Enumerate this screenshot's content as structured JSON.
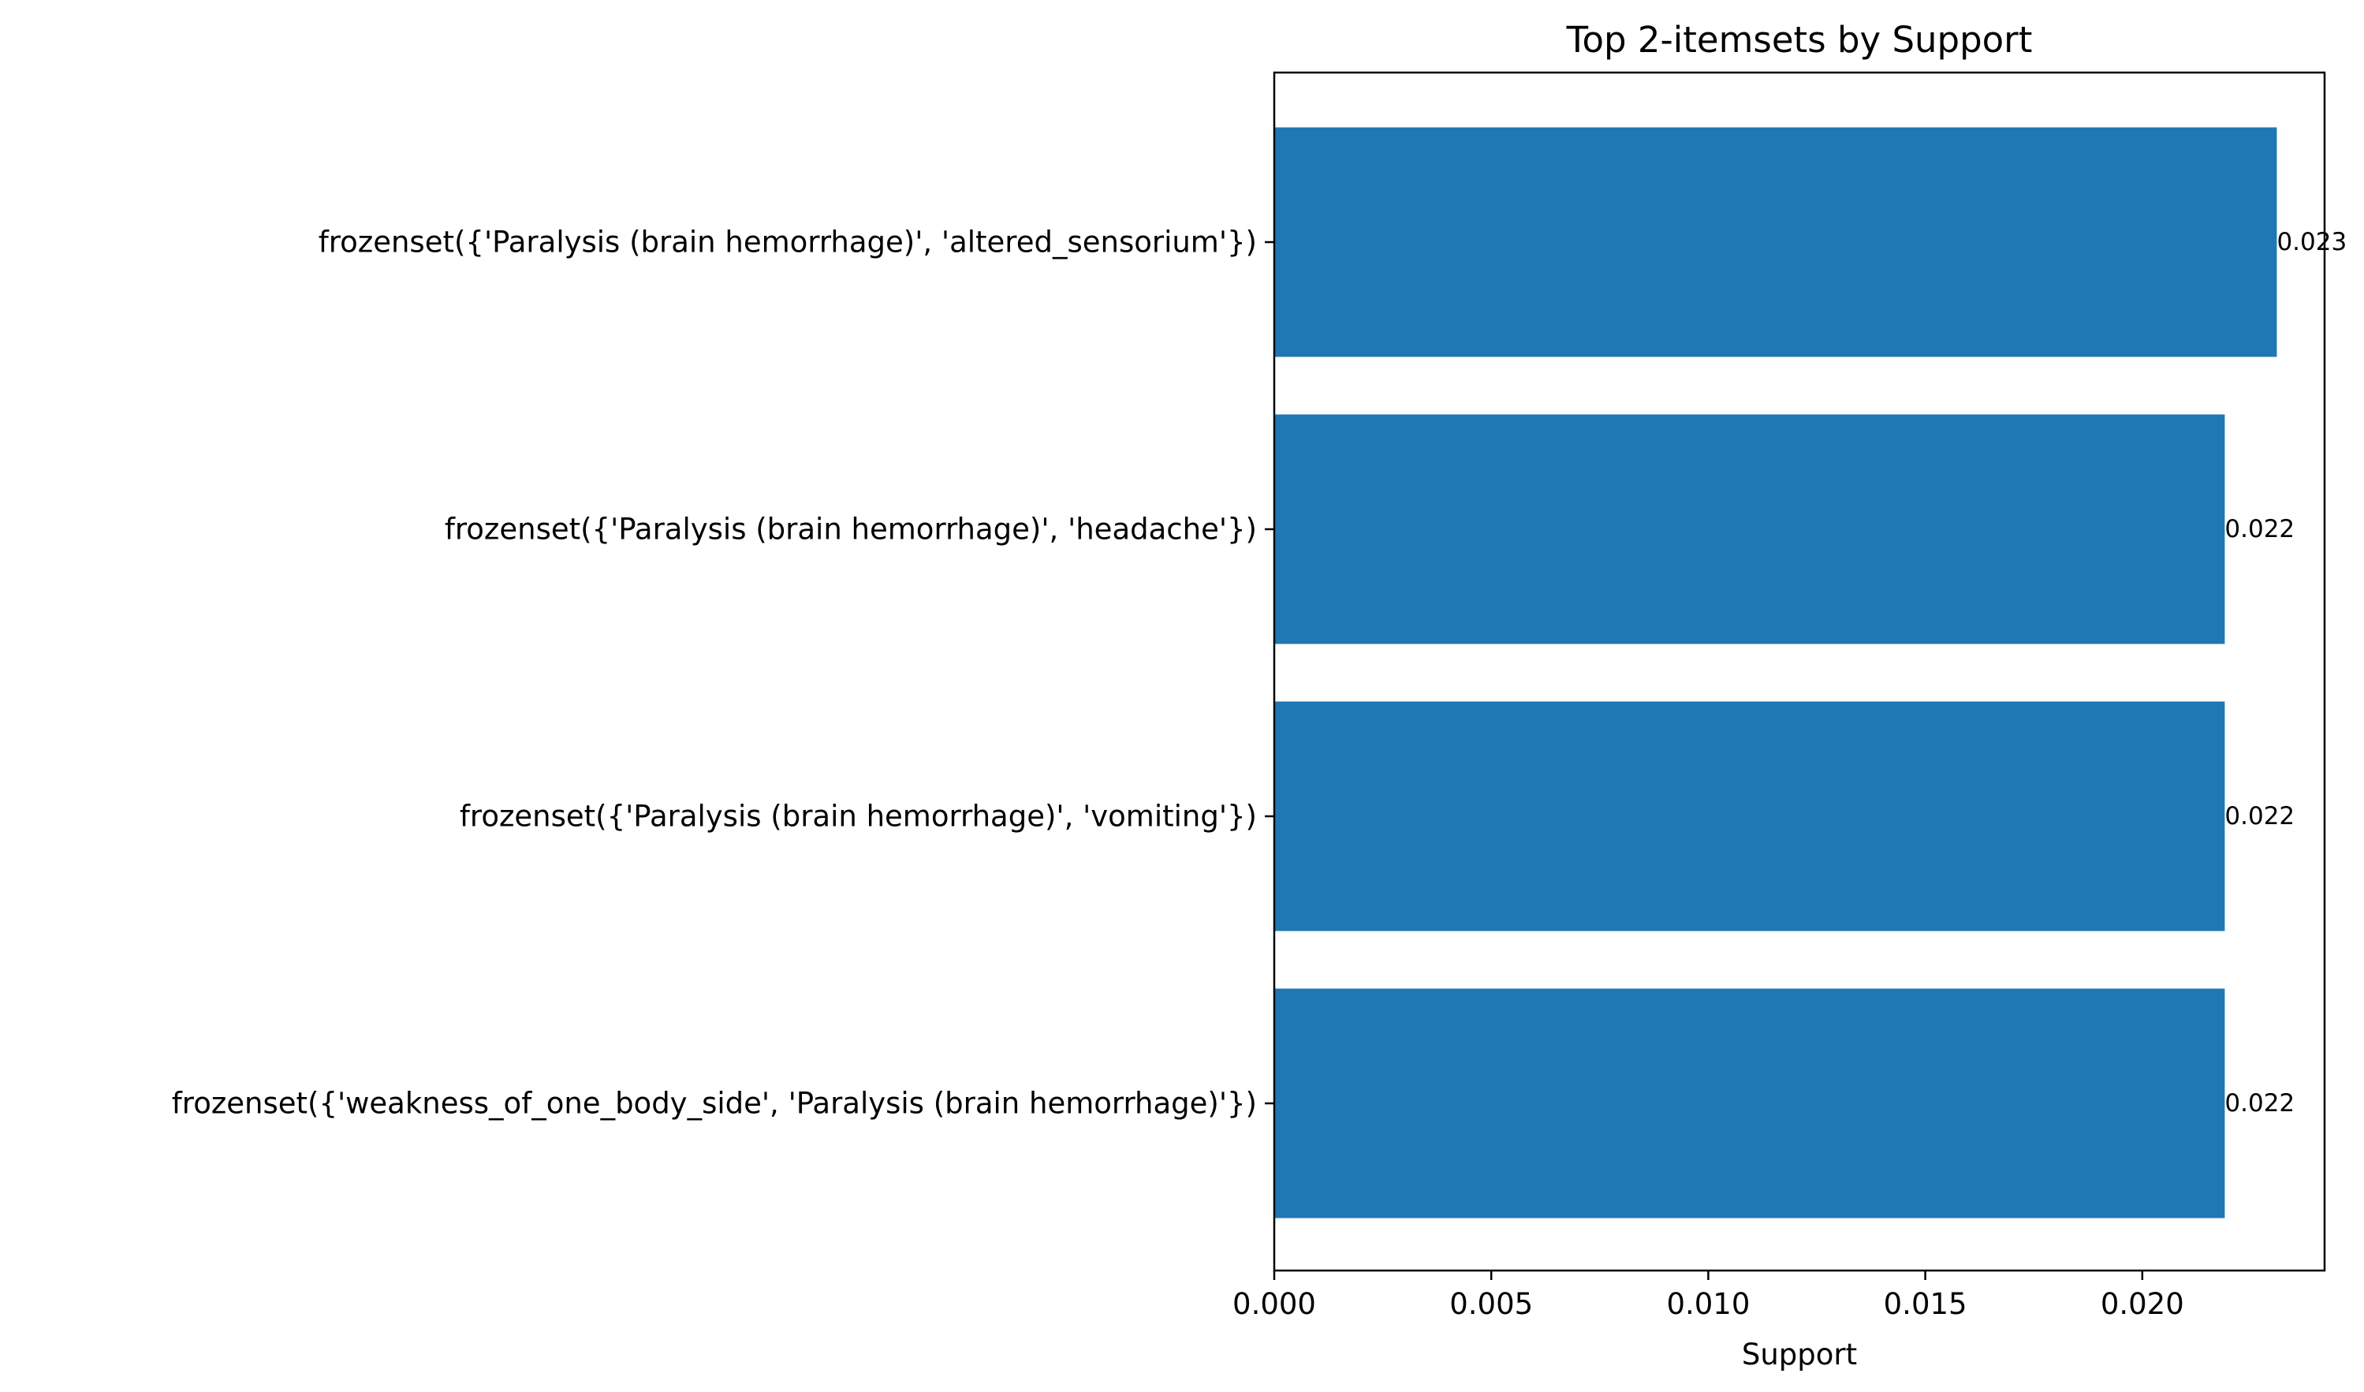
{
  "chart_data": {
    "type": "bar",
    "orientation": "horizontal",
    "title": "Top 2-itemsets by Support",
    "xlabel": "Support",
    "ylabel": "",
    "categories": [
      "frozenset({'Paralysis (brain hemorrhage)', 'altered_sensorium'})",
      "frozenset({'Paralysis (brain hemorrhage)', 'headache'})",
      "frozenset({'Paralysis (brain hemorrhage)', 'vomiting'})",
      "frozenset({'weakness_of_one_body_side', 'Paralysis (brain hemorrhage)'})"
    ],
    "values": [
      0.0231,
      0.0219,
      0.0219,
      0.0219
    ],
    "data_labels": [
      "0.023",
      "0.022",
      "0.022",
      "0.022"
    ],
    "xlim": [
      0,
      0.0242
    ],
    "xticks": [
      0,
      0.005,
      0.01,
      0.015,
      0.02
    ],
    "xtick_labels": [
      "0.000",
      "0.005",
      "0.010",
      "0.015",
      "0.020"
    ],
    "bar_color": "#1f77b4",
    "grid": false,
    "legend": "none"
  }
}
